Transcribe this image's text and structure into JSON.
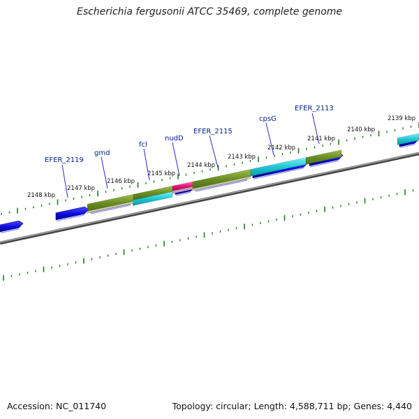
{
  "title": "Escherichia fergusonii ATCC 35469, complete genome",
  "footer": {
    "accession": "Accession: NC_011740",
    "summary": "Topology: circular; Length: 4,588,711 bp; Genes: 4,440"
  },
  "ticks": [
    "2148 kbp",
    "2147 kbp",
    "2146 kbp",
    "2145 kbp",
    "2144 kbp",
    "2143 kbp",
    "2142 kbp",
    "2141 kbp",
    "2140 kbp",
    "2139 kbp"
  ],
  "genes": [
    "EFER_2119",
    "gmd",
    "fcl",
    "nudD",
    "EFER_2115",
    "cpsG",
    "EFER_2113"
  ],
  "colors": {
    "cds": "#0a0ae0",
    "olive": "#6b8f23",
    "cyan": "#1ec8d4",
    "pink": "#e8147a",
    "backbone": "#6e6e6e",
    "tick": "#1f7a1f",
    "label": "#00208a"
  }
}
